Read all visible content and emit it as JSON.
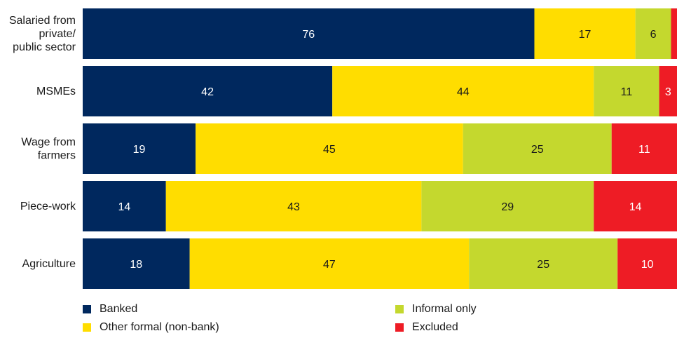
{
  "chart_data": {
    "type": "bar",
    "orientation": "horizontal",
    "stacked": true,
    "xlim": [
      0,
      100
    ],
    "categories": [
      [
        "Salaried from",
        "private/",
        "public sector"
      ],
      [
        "MSMEs"
      ],
      [
        "Wage from",
        "farmers"
      ],
      [
        "Piece-work"
      ],
      [
        "Agriculture"
      ]
    ],
    "series": [
      {
        "name": "Banked",
        "color": "#00285e",
        "text_color": "#ffffff",
        "values": [
          76,
          42,
          19,
          14,
          18
        ]
      },
      {
        "name": "Other formal (non-bank)",
        "color": "#ffdd00",
        "text_color": "#1a1a1a",
        "values": [
          17,
          44,
          45,
          43,
          47
        ]
      },
      {
        "name": "Informal only",
        "color": "#c4d82e",
        "text_color": "#1a1a1a",
        "values": [
          6,
          11,
          25,
          29,
          25
        ]
      },
      {
        "name": "Excluded",
        "color": "#ee1c25",
        "text_color": "#ffffff",
        "values": [
          1,
          3,
          11,
          14,
          10
        ]
      }
    ],
    "data_labels": [
      [
        "76",
        "42",
        "19",
        "14",
        "18"
      ],
      [
        "17",
        "44",
        "45",
        "43",
        "47"
      ],
      [
        "6",
        "11",
        "25",
        "29",
        "25"
      ],
      [
        "",
        "3",
        "11",
        "14",
        "10"
      ]
    ],
    "legend": {
      "placement": "bottom",
      "items": [
        "Banked",
        "Informal only",
        "Other formal (non-bank)",
        "Excluded"
      ]
    },
    "title": "",
    "xlabel": "",
    "ylabel": "",
    "grid": false
  }
}
